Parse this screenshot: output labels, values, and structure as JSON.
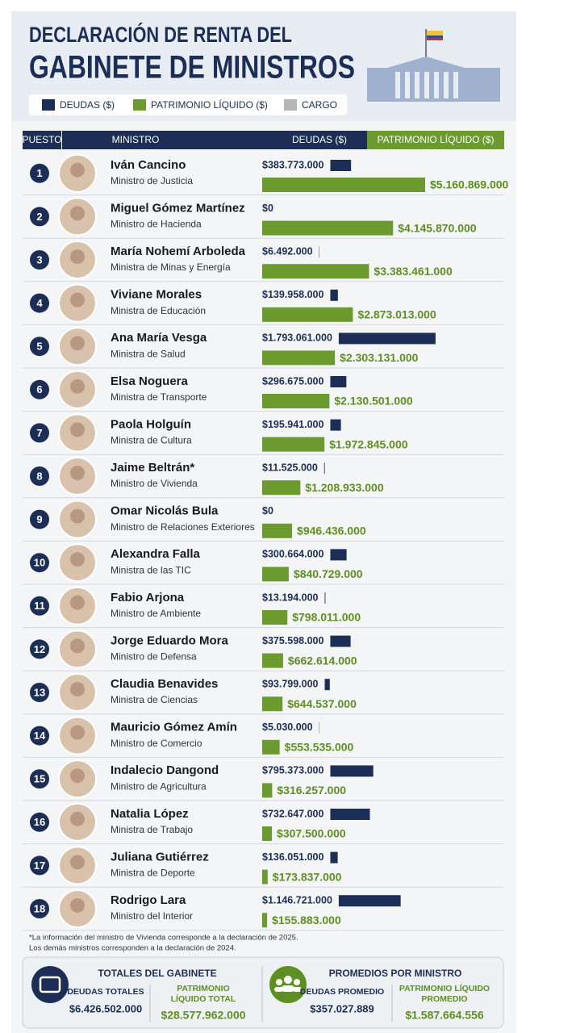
{
  "chart_data": {
    "type": "bar",
    "title_lines": [
      "DECLARACIÓN DE RENTA DEL",
      "GABINETE DE MINISTROS"
    ],
    "cargo_legend": {
      "name": "CARGO",
      "color": "#b5b5b5"
    },
    "column_headers": [
      "PUESTO",
      "MINISTRO"
    ],
    "ranks": [
      1,
      2,
      3,
      4,
      5,
      6,
      7,
      8,
      9,
      10,
      11,
      12,
      13,
      14,
      15,
      16,
      17,
      18
    ],
    "categories": [
      "Iván Cancino",
      "Miguel Gómez Martínez",
      "María Nohemí Arboleda",
      "Viviane Morales",
      "Ana María Vesga",
      "Elsa Noguera",
      "Paola Holguín",
      "Jaime Beltrán*",
      "Omar Nicolás Bula",
      "Alexandra Falla",
      "Fabio Arjona",
      "Jorge Eduardo Mora",
      "Claudia Benavides",
      "Mauricio Gómez Amín",
      "Indalecio Dangond",
      "Natalia López",
      "Juliana Gutiérrez",
      "Rodrigo Lara"
    ],
    "roles": [
      "Ministro de Justicia",
      "Ministro de Hacienda",
      "Ministra de Minas y Energía",
      "Ministra de Educación",
      "Ministra de Salud",
      "Ministra de Transporte",
      "Ministra de Cultura",
      "Ministro de Vivienda",
      "Ministro de Relaciones Exteriores",
      "Ministra de las TIC",
      "Ministro de Ambiente",
      "Ministro de Defensa",
      "Ministra de Ciencias",
      "Ministro de Comercio",
      "Ministro de Agricultura",
      "Ministra de Trabajo",
      "Ministra de Deporte",
      "Ministro del Interior"
    ],
    "series": [
      {
        "name": "DEUDAS ($)",
        "color": "#1c2e55",
        "values": [
          383773000,
          0,
          6492000,
          139958000,
          1793061000,
          296675000,
          195941000,
          11525000,
          0,
          300664000,
          13194000,
          375598000,
          93799000,
          5030000,
          795373000,
          732647000,
          136051000,
          1146721000
        ],
        "value_labels": [
          "$383.773.000",
          "$0",
          "$6.492.000",
          "$139.958.000",
          "$1.793.061.000",
          "$296.675.000",
          "$195.941.000",
          "$11.525.000",
          "$0",
          "$300.664.000",
          "$13.194.000",
          "$375.598.000",
          "$93.799.000",
          "$5.030.000",
          "$795.373.000",
          "$732.647.000",
          "$136.051.000",
          "$1.146.721.000"
        ]
      },
      {
        "name": "PATRIMONIO LÍQUIDO ($)",
        "color": "#6b9b2f",
        "values": [
          5160869000,
          4145870000,
          3383461000,
          2873013000,
          2303131000,
          2130501000,
          1972845000,
          1208933000,
          946436000,
          840729000,
          798011000,
          662614000,
          644537000,
          553535000,
          316257000,
          307500000,
          173837000,
          155883000
        ],
        "value_labels": [
          "$5.160.869.000",
          "$4.145.870.000",
          "$3.383.461.000",
          "$2.873.013.000",
          "$2.303.131.000",
          "$2.130.501.000",
          "$1.972.845.000",
          "$1.208.933.000",
          "$946.436.000",
          "$840.729.000",
          "$798.011.000",
          "$662.614.000",
          "$644.537.000",
          "$553.535.000",
          "$316.257.000",
          "$307.500.000",
          "$173.837.000",
          "$155.883.000"
        ]
      }
    ],
    "footnote": [
      "*La información del ministro de Vivienda corresponde a la declaración de 2025.",
      "Los demás ministros corresponden a la declaración de 2024."
    ],
    "summary": [
      {
        "title": "TOTALES DEL GABINETE",
        "items": [
          {
            "label_lines": [
              "DEUDAS TOTALES"
            ],
            "value": "$6.426.502.000"
          },
          {
            "label_lines": [
              "PATRIMONIO",
              "LÍQUIDO TOTAL"
            ],
            "value": "$28.577.962.000"
          }
        ]
      },
      {
        "title": "PROMEDIOS POR MINISTRO",
        "items": [
          {
            "label_lines": [
              "DEUDAS PROMEDIO"
            ],
            "value": "$357.027.889"
          },
          {
            "label_lines": [
              "PATRIMONIO LÍQUIDO",
              "PROMEDIO"
            ],
            "value": "$1.587.664.556"
          }
        ]
      }
    ]
  }
}
